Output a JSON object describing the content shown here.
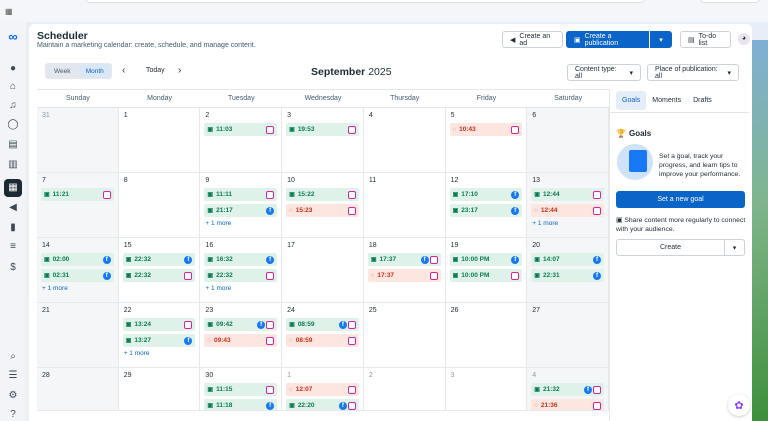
{
  "header": {
    "title": "Scheduler",
    "subtitle": "Maintain a marketing calendar: create, schedule, and manage content.",
    "create_ad": "Create an ad",
    "create_publication": "Create a publication",
    "todo": "To-do list"
  },
  "controls": {
    "week": "Week",
    "month": "Month",
    "today": "Today",
    "month_name": "September",
    "year": "2025",
    "content_type": "Content type: all",
    "place": "Place of publication: all"
  },
  "days_of_week": [
    "Sunday",
    "Monday",
    "Tuesday",
    "Wednesday",
    "Thursday",
    "Friday",
    "Saturday"
  ],
  "weeks": [
    [
      {
        "d": "31",
        "other": true,
        "posts": []
      },
      {
        "d": "1",
        "posts": []
      },
      {
        "d": "2",
        "posts": [
          {
            "t": "11:03",
            "s": "s",
            "p": [
              "ig"
            ]
          }
        ]
      },
      {
        "d": "3",
        "posts": [
          {
            "t": "19:53",
            "s": "s",
            "p": [
              "ig"
            ]
          }
        ]
      },
      {
        "d": "4",
        "posts": []
      },
      {
        "d": "5",
        "posts": [
          {
            "t": "10:43",
            "s": "d",
            "p": [
              "ig"
            ]
          }
        ]
      },
      {
        "d": "6",
        "posts": []
      }
    ],
    [
      {
        "d": "7",
        "posts": [
          {
            "t": "11:21",
            "s": "s",
            "p": [
              "ig"
            ]
          }
        ]
      },
      {
        "d": "8",
        "posts": []
      },
      {
        "d": "9",
        "posts": [
          {
            "t": "11:11",
            "s": "s",
            "p": [
              "ig"
            ]
          },
          {
            "t": "21:17",
            "s": "s",
            "p": [
              "fb"
            ]
          }
        ],
        "more": "+ 1 more"
      },
      {
        "d": "10",
        "posts": [
          {
            "t": "15:22",
            "s": "s",
            "p": [
              "ig"
            ]
          },
          {
            "t": "15:23",
            "s": "d",
            "p": [
              "ig"
            ]
          }
        ]
      },
      {
        "d": "11",
        "posts": []
      },
      {
        "d": "12",
        "posts": [
          {
            "t": "17:10",
            "s": "s",
            "p": [
              "fb"
            ]
          },
          {
            "t": "23:17",
            "s": "s",
            "p": [
              "fb"
            ]
          }
        ]
      },
      {
        "d": "13",
        "posts": [
          {
            "t": "12:44",
            "s": "s",
            "p": [
              "ig"
            ]
          },
          {
            "t": "12:44",
            "s": "d",
            "p": [
              "ig"
            ]
          }
        ],
        "more": "+ 1 more"
      }
    ],
    [
      {
        "d": "14",
        "posts": [
          {
            "t": "02:00",
            "s": "s",
            "p": [
              "fb"
            ]
          },
          {
            "t": "02:31",
            "s": "s",
            "p": [
              "fb"
            ]
          }
        ],
        "more": "+ 1 more"
      },
      {
        "d": "15",
        "posts": [
          {
            "t": "22:32",
            "s": "s",
            "p": [
              "fb"
            ]
          },
          {
            "t": "22:32",
            "s": "s",
            "p": [
              "ig"
            ]
          }
        ]
      },
      {
        "d": "16",
        "posts": [
          {
            "t": "16:32",
            "s": "s",
            "p": [
              "fb"
            ]
          },
          {
            "t": "22:32",
            "s": "s",
            "p": [
              "ig"
            ]
          }
        ],
        "more": "+ 1 more"
      },
      {
        "d": "17",
        "posts": []
      },
      {
        "d": "18",
        "posts": [
          {
            "t": "17:37",
            "s": "s",
            "p": [
              "fb",
              "ig"
            ]
          },
          {
            "t": "17:37",
            "s": "d",
            "p": [
              "ig"
            ]
          }
        ]
      },
      {
        "d": "19",
        "posts": [
          {
            "t": "10:00 PM",
            "s": "s",
            "p": [
              "fb"
            ]
          },
          {
            "t": "10:00 PM",
            "s": "s",
            "p": [
              "ig"
            ]
          }
        ]
      },
      {
        "d": "20",
        "posts": [
          {
            "t": "14:07",
            "s": "s",
            "p": [
              "fb"
            ]
          },
          {
            "t": "22:31",
            "s": "s",
            "p": [
              "fb"
            ]
          }
        ]
      }
    ],
    [
      {
        "d": "21",
        "posts": []
      },
      {
        "d": "22",
        "posts": [
          {
            "t": "13:24",
            "s": "s",
            "p": [
              "ig"
            ]
          },
          {
            "t": "13:27",
            "s": "s",
            "p": [
              "fb"
            ]
          }
        ],
        "more": "+ 1 more"
      },
      {
        "d": "23",
        "posts": [
          {
            "t": "09:42",
            "s": "s",
            "p": [
              "fb",
              "ig"
            ]
          },
          {
            "t": "09:43",
            "s": "d",
            "p": [
              "ig"
            ]
          }
        ]
      },
      {
        "d": "24",
        "posts": [
          {
            "t": "08:59",
            "s": "s",
            "p": [
              "fb",
              "ig"
            ]
          },
          {
            "t": "08:59",
            "s": "d",
            "p": [
              "ig"
            ]
          }
        ]
      },
      {
        "d": "25",
        "posts": []
      },
      {
        "d": "26",
        "posts": []
      },
      {
        "d": "27",
        "posts": []
      }
    ],
    [
      {
        "d": "28",
        "posts": []
      },
      {
        "d": "29",
        "posts": []
      },
      {
        "d": "30",
        "posts": [
          {
            "t": "11:15",
            "s": "s",
            "p": [
              "ig"
            ]
          },
          {
            "t": "11:18",
            "s": "s",
            "p": [
              "fb"
            ]
          }
        ]
      },
      {
        "d": "1",
        "other": true,
        "posts": [
          {
            "t": "12:07",
            "s": "d",
            "p": [
              "ig"
            ]
          },
          {
            "t": "22:20",
            "s": "s",
            "p": [
              "fb",
              "ig"
            ]
          }
        ]
      },
      {
        "d": "2",
        "other": true,
        "posts": []
      },
      {
        "d": "3",
        "other": true,
        "posts": []
      },
      {
        "d": "4",
        "other": true,
        "posts": [
          {
            "t": "21:32",
            "s": "s",
            "p": [
              "fb",
              "ig"
            ]
          },
          {
            "t": "21:36",
            "s": "d",
            "p": [
              "ig"
            ]
          }
        ]
      }
    ]
  ],
  "panel": {
    "tabs": [
      "Goals",
      "Moments",
      "Drafts"
    ],
    "goals_title": "Goals",
    "goals_text": "Set a goal, track your progress, and learn tips to improve your performance.",
    "set_goal": "Set a new goal",
    "share_text": "Share content more regularly to connect with your audience.",
    "create": "Create"
  },
  "colors": {
    "accent": "#0b64c8",
    "scheduled": "#dff2ea",
    "draft": "#fde6df"
  }
}
